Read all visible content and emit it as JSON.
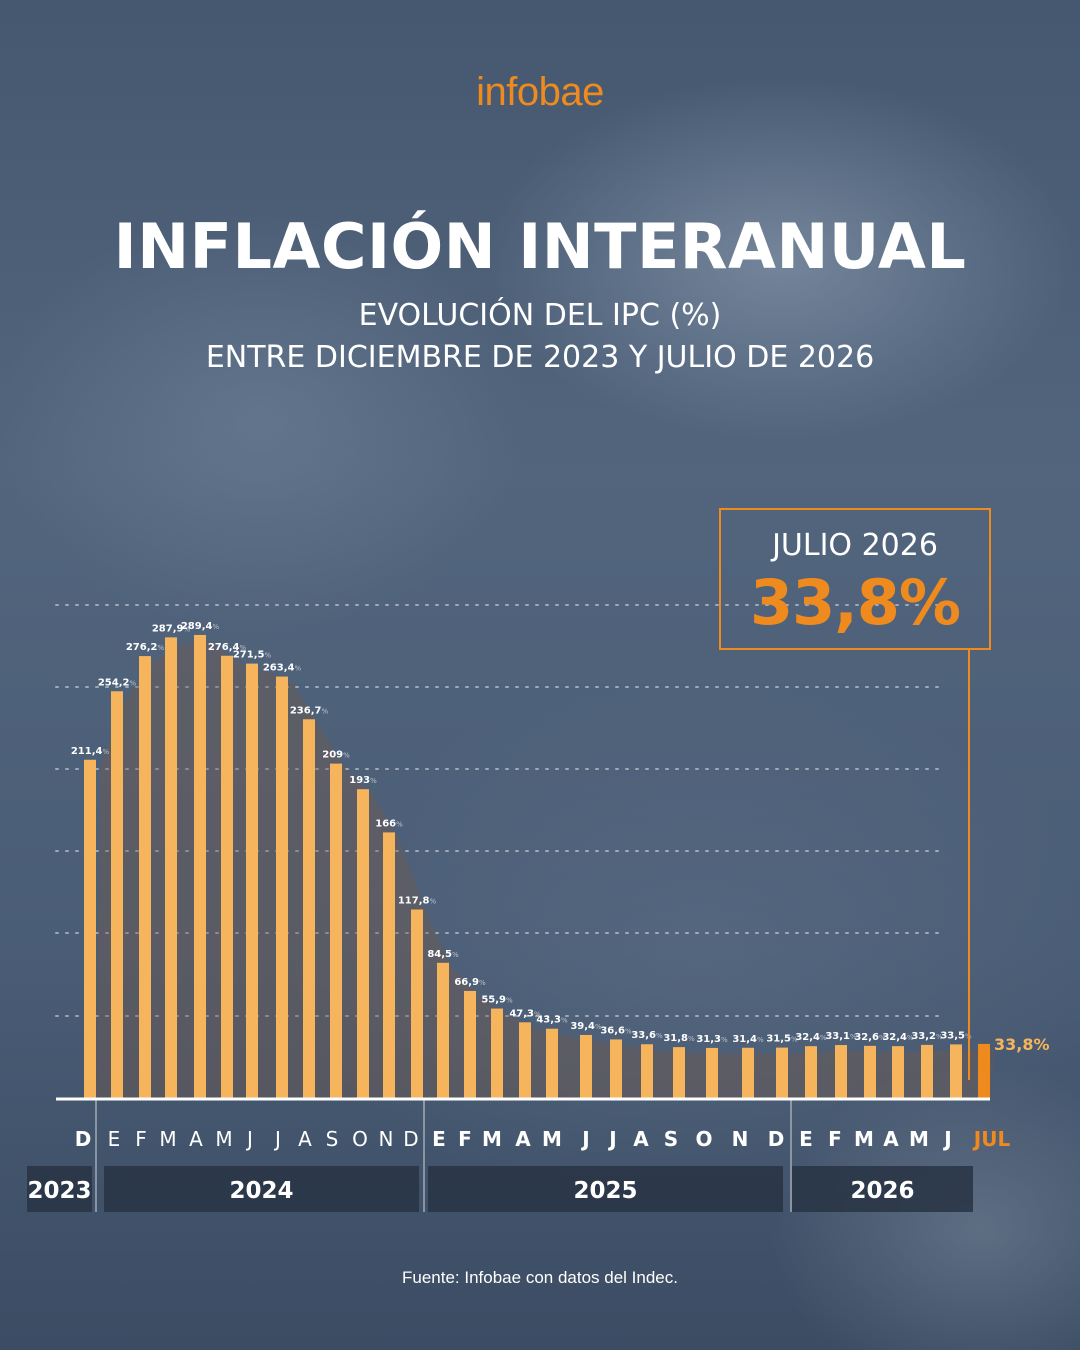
{
  "brand": {
    "logo_text": "infobae",
    "accent_color": "#ef8a1f"
  },
  "header": {
    "title": "INFLACIÓN INTERANUAL",
    "subtitle_line1": "EVOLUCIÓN DEL IPC (%)",
    "subtitle_line2": "ENTRE DICIEMBRE DE 2023 Y JULIO DE 2026"
  },
  "callout": {
    "label": "JULIO 2026",
    "value": "33,8%"
  },
  "source": "Fuente: Infobae con datos del Indec.",
  "chart_data": {
    "type": "bar",
    "categories": [
      "D",
      "E",
      "F",
      "M",
      "A",
      "M",
      "J",
      "J",
      "A",
      "S",
      "O",
      "N",
      "D",
      "E",
      "F",
      "M",
      "A",
      "M",
      "J",
      "J",
      "A",
      "S",
      "O",
      "N",
      "D",
      "E",
      "F",
      "M",
      "A",
      "M",
      "J",
      "JUL"
    ],
    "values": [
      211.4,
      254.2,
      276.2,
      287.9,
      289.4,
      276.4,
      271.5,
      263.4,
      236.7,
      209,
      193,
      166,
      117.8,
      84.5,
      66.9,
      55.9,
      47.3,
      43.3,
      39.4,
      36.6,
      33.6,
      31.8,
      31.3,
      31.4,
      31.5,
      32.4,
      33.1,
      32.6,
      32.4,
      33.2,
      33.5,
      33.8
    ],
    "labels": [
      "211,4",
      "254,2",
      "276,2",
      "287,9",
      "289,4",
      "276,4",
      "271,5",
      "263,4",
      "236,7",
      "209",
      "193",
      "166",
      "117,8",
      "84,5",
      "66,9",
      "55,9",
      "47,3",
      "43,3",
      "39,4",
      "36,6",
      "33,6",
      "31,8",
      "31,3",
      "31,4",
      "31,5",
      "32,4",
      "33,1",
      "32,6",
      "32,4",
      "33,2",
      "33,5",
      "33,8%"
    ],
    "label_suffix": "%",
    "highlight_index": 31,
    "years": [
      {
        "label": "2023",
        "from": 0,
        "to": 0
      },
      {
        "label": "2024",
        "from": 1,
        "to": 12
      },
      {
        "label": "2025",
        "from": 13,
        "to": 24
      },
      {
        "label": "2026",
        "from": 25,
        "to": 31
      }
    ],
    "ylim": [
      0,
      320
    ],
    "grid": true,
    "bar_color": "#f6b55c",
    "highlight_color": "#ef8a1f"
  }
}
